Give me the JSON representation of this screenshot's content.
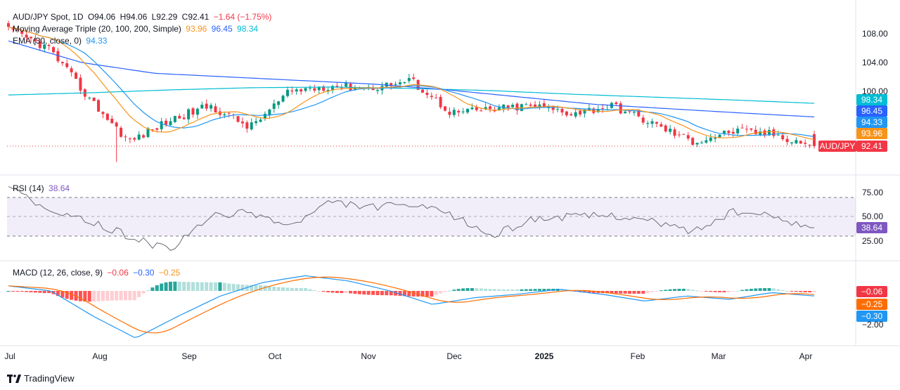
{
  "legend": {
    "symbol": "AUD/JPY Spot, 1D",
    "open": "O94.06",
    "high": "H94.06",
    "low": "L92.29",
    "close": "C92.41",
    "change": "−1.64 (−1.75%)",
    "ma_label": "Moving Average Triple (20, 100, 200, Simple)",
    "ma_values": [
      "93.96",
      "96.45",
      "98.34"
    ],
    "ema_label": "EMA (30, close, 0)",
    "ema_value": "94.33",
    "rsi_label": "RSI (14)",
    "rsi_value": "38.64",
    "macd_label": "MACD (12, 26, close, 9)",
    "macd_values": [
      "−0.06",
      "−0.30",
      "−0.25"
    ]
  },
  "price_axis": [
    "108.00",
    "104.00",
    "100.00"
  ],
  "price_tags": {
    "ma200": "98.34",
    "ma100": "96.45",
    "ema": "94.33",
    "ma20": "93.96",
    "pair": "AUD/JPY",
    "last": "92.41"
  },
  "rsi_axis": [
    "75.00",
    "50.00",
    "25.00"
  ],
  "rsi_tag": "38.64",
  "macd_axis": [
    "−2.00"
  ],
  "macd_tags": [
    "−0.06",
    "−0.25",
    "−0.30"
  ],
  "x_axis": [
    "Jul",
    "Aug",
    "Sep",
    "Oct",
    "Nov",
    "Dec",
    "2025",
    "Feb",
    "Mar",
    "Apr"
  ],
  "brand": "TradingView",
  "colors": {
    "up": "#089981",
    "down": "#f23645",
    "ma20": "#f7931a",
    "ma100": "#2962ff",
    "ma200": "#00bcd4",
    "ema": "#2196f3",
    "rsi": "#7e57c2",
    "macd": "#2962ff",
    "signal": "#ff6d00"
  },
  "chart_data": [
    {
      "type": "candlestick",
      "title": "AUD/JPY Spot, 1D",
      "x": [
        "Jul",
        "Aug",
        "Sep",
        "Oct",
        "Nov",
        "Dec",
        "2025",
        "Feb",
        "Mar",
        "Apr"
      ],
      "ylim": [
        90,
        110
      ],
      "close_points": [
        [
          "Jul",
          108.5
        ],
        [
          "Jul",
          106.0
        ],
        [
          "Aug",
          99.0
        ],
        [
          "Aug",
          93.0
        ],
        [
          "Aug",
          96.0
        ],
        [
          "Sep",
          98.0
        ],
        [
          "Sep",
          95.0
        ],
        [
          "Oct",
          100.0
        ],
        [
          "Oct",
          100.8
        ],
        [
          "Nov",
          100.5
        ],
        [
          "Nov",
          101.5
        ],
        [
          "Dec",
          97.0
        ],
        [
          "Dec",
          97.5
        ],
        [
          "2025",
          98.0
        ],
        [
          "2025",
          97.0
        ],
        [
          "Feb",
          98.0
        ],
        [
          "Feb",
          95.5
        ],
        [
          "Mar",
          93.0
        ],
        [
          "Mar",
          94.5
        ],
        [
          "Apr",
          94.06
        ],
        [
          "Apr",
          92.41
        ]
      ],
      "series": [
        {
          "name": "Moving Average 20",
          "last": 93.96
        },
        {
          "name": "Moving Average 100",
          "last": 96.45
        },
        {
          "name": "Moving Average 200",
          "last": 98.34
        },
        {
          "name": "EMA 30",
          "last": 94.33
        }
      ]
    },
    {
      "type": "line",
      "title": "RSI (14)",
      "ylim": [
        0,
        100
      ],
      "bands": [
        30,
        50,
        70
      ],
      "series": [
        {
          "name": "RSI",
          "values": [
            85,
            55,
            45,
            30,
            15,
            50,
            55,
            40,
            65,
            60,
            62,
            52,
            30,
            48,
            50,
            52,
            45,
            35,
            55,
            50,
            38.64
          ]
        }
      ]
    },
    {
      "type": "bar",
      "title": "MACD (12, 26, close, 9)",
      "series": [
        {
          "name": "Histogram",
          "last": -0.06
        },
        {
          "name": "MACD",
          "last": -0.3
        },
        {
          "name": "Signal",
          "last": -0.25
        }
      ]
    }
  ]
}
